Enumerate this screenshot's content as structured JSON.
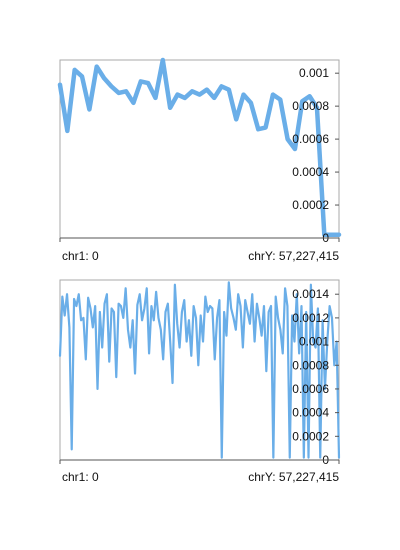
{
  "chart_data": [
    {
      "type": "line",
      "title": "",
      "xlabel": "",
      "ylabel": "",
      "x_range_labels": {
        "start": "chr1: 0",
        "end": "chrY: 57,227,415"
      },
      "ylim": [
        0,
        0.00108
      ],
      "yticks": [
        {
          "value": 0.001,
          "label": "0.001"
        },
        {
          "value": 0.0008,
          "label": "0.0008"
        },
        {
          "value": 0.0006,
          "label": "0.0006"
        },
        {
          "value": 0.0004,
          "label": "0.0004"
        },
        {
          "value": 0.0002,
          "label": "0.0002"
        },
        {
          "value": 0,
          "label": "0"
        }
      ],
      "grid": false,
      "legend": "none",
      "color": "#6aaee8",
      "series": [
        {
          "values": [
            0.00093,
            0.00065,
            0.00102,
            0.00098,
            0.00078,
            0.00104,
            0.00097,
            0.00092,
            0.00088,
            0.00089,
            0.00082,
            0.00095,
            0.00094,
            0.00085,
            0.00108,
            0.00079,
            0.00087,
            0.00085,
            0.00089,
            0.00087,
            0.0009,
            0.00085,
            0.00092,
            0.0009,
            0.00072,
            0.00087,
            0.00082,
            0.00066,
            0.00067,
            0.00087,
            0.00084,
            0.0006,
            0.00054,
            0.00083,
            0.00086,
            0.00079,
            2e-05,
            2e-05,
            2e-05
          ]
        }
      ]
    },
    {
      "type": "line",
      "title": "",
      "xlabel": "",
      "ylabel": "",
      "x_range_labels": {
        "start": "chr1: 0",
        "end": "chrY: 57,227,415"
      },
      "ylim": [
        0,
        0.00152
      ],
      "yticks": [
        {
          "value": 0.0014,
          "label": "0.0014"
        },
        {
          "value": 0.0012,
          "label": "0.0012"
        },
        {
          "value": 0.001,
          "label": "0.001"
        },
        {
          "value": 0.0008,
          "label": "0.0008"
        },
        {
          "value": 0.0006,
          "label": "0.0006"
        },
        {
          "value": 0.0004,
          "label": "0.0004"
        },
        {
          "value": 0.0002,
          "label": "0.0002"
        },
        {
          "value": 0,
          "label": "0"
        }
      ],
      "grid": false,
      "legend": "none",
      "color": "#6aaee8",
      "series": [
        {
          "values": [
            0.00088,
            0.00138,
            0.00122,
            0.0014,
            0.00112,
            9e-05,
            0.00136,
            0.0013,
            0.0014,
            0.00118,
            0.0012,
            0.00085,
            0.00137,
            0.00128,
            0.00112,
            0.0013,
            0.0006,
            0.00125,
            0.00095,
            0.00132,
            0.0014,
            0.00083,
            0.00128,
            0.00125,
            0.0007,
            0.00132,
            0.0013,
            0.0012,
            0.00145,
            0.0011,
            0.00095,
            0.00118,
            0.00073,
            0.00131,
            0.0014,
            0.00118,
            0.00128,
            0.00145,
            0.0009,
            0.0013,
            0.00118,
            0.00142,
            0.0012,
            0.0011,
            0.00085,
            0.00125,
            0.00132,
            0.001,
            0.00065,
            0.00148,
            0.00115,
            0.00095,
            0.00125,
            0.00135,
            0.001,
            0.00118,
            0.00088,
            0.0013,
            0.0012,
            0.0008,
            0.00122,
            0.001,
            0.00138,
            0.00125,
            0.0013,
            0.00128,
            0.00085,
            0.0012,
            0.00135,
            2e-05,
            0.00125,
            0.00105,
            0.0015,
            0.00128,
            0.0012,
            0.0011,
            0.0014,
            0.0013,
            0.00095,
            0.00135,
            0.00125,
            0.00115,
            0.0014,
            0.001,
            0.00132,
            0.0012,
            0.00105,
            0.0013,
            0.00075,
            0.00125,
            0.0013,
            2e-05,
            0.00138,
            0.0012,
            0.0011,
            0.0009,
            0.00145,
            0.0013,
            2e-05,
            0.00122,
            0.001,
            0.0014,
            0.0009,
            0.0013,
            2e-05,
            0.00125,
            2e-05,
            0.00148,
            0.001,
            0.00095,
            0.00128,
            2e-05,
            0.00118,
            0.0006,
            0.001,
            0.0013,
            0.0012,
            0.0008,
            0.001,
            2e-05
          ]
        }
      ]
    }
  ]
}
